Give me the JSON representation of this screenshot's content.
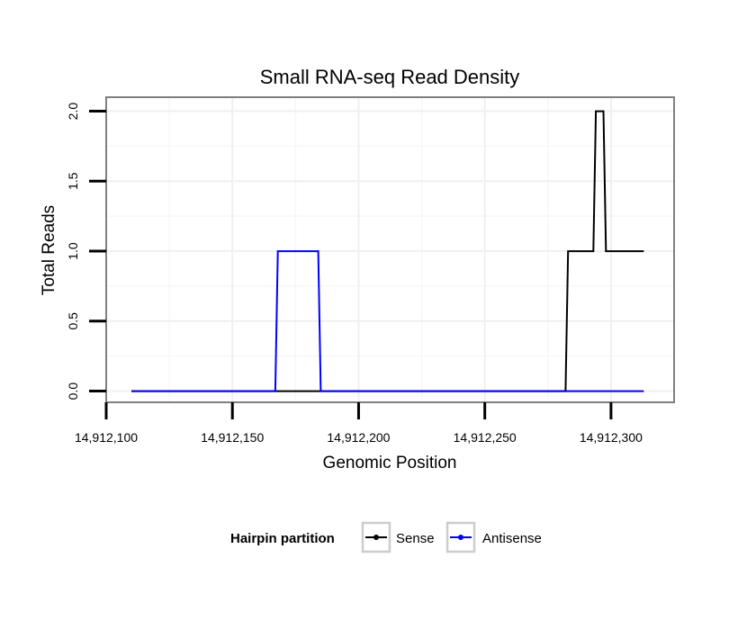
{
  "chart_data": {
    "type": "line",
    "title": "Small RNA-seq Read Density",
    "xlabel": "Genomic Position",
    "ylabel": "Total Reads",
    "xlim": [
      14912100,
      14912325
    ],
    "ylim": [
      -0.08,
      2.1
    ],
    "grid": true,
    "xticks": [
      14912100,
      14912150,
      14912200,
      14912250,
      14912300
    ],
    "xtick_labels": [
      "14,912,100",
      "14,912,150",
      "14,912,200",
      "14,912,250",
      "14,912,300"
    ],
    "yticks": [
      0,
      0.5,
      1,
      1.5,
      2
    ],
    "ytick_labels": [
      "0.0",
      "0.5",
      "1.0",
      "1.5",
      "2.0"
    ],
    "series": [
      {
        "name": "Sense",
        "color": "#000000",
        "x": [
          14912110,
          14912282,
          14912283,
          14912293,
          14912294,
          14912297,
          14912298,
          14912313
        ],
        "y": [
          0,
          0,
          1,
          1,
          2,
          2,
          1,
          1
        ]
      },
      {
        "name": "Antisense",
        "color": "#0000ff",
        "x": [
          14912110,
          14912167,
          14912168,
          14912184,
          14912185,
          14912313
        ],
        "y": [
          0,
          0,
          1,
          1,
          0,
          0
        ]
      }
    ],
    "legend": {
      "title": "Hairpin partition",
      "position": "bottom",
      "entries": [
        "Sense",
        "Antisense"
      ]
    }
  }
}
